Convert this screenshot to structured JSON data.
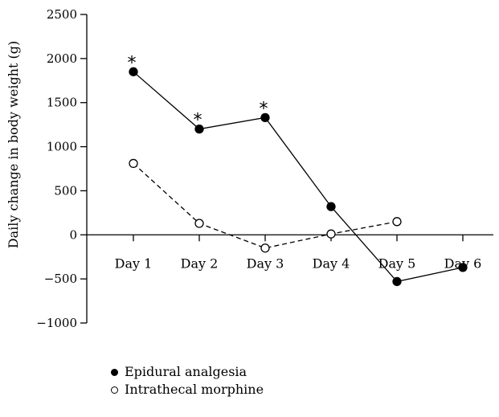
{
  "chart_data": {
    "type": "line",
    "categories": [
      "Day 1",
      "Day 2",
      "Day 3",
      "Day 4",
      "Day 5",
      "Day 6"
    ],
    "ylabel": "Daily change in body weight (g)",
    "ylim": [
      -1000,
      2500
    ],
    "yticks": [
      -1000,
      -500,
      0,
      500,
      1000,
      1500,
      2000,
      2500
    ],
    "ytick_labels": [
      "−1000",
      "−500",
      "0",
      "500",
      "1000",
      "1500",
      "2000",
      "2500"
    ],
    "series": [
      {
        "name": "Epidural analgesia",
        "values": [
          1850,
          1200,
          1330,
          320,
          -530,
          -370
        ],
        "marker": "filled-circle",
        "line": "solid",
        "annotations": [
          "*",
          "*",
          "*",
          "",
          "",
          ""
        ]
      },
      {
        "name": "Intrathecal morphine",
        "values": [
          810,
          130,
          -150,
          10,
          150,
          null
        ],
        "marker": "open-circle",
        "line": "dashed"
      }
    ],
    "legend_placement": "bottom-left",
    "grid": false
  }
}
